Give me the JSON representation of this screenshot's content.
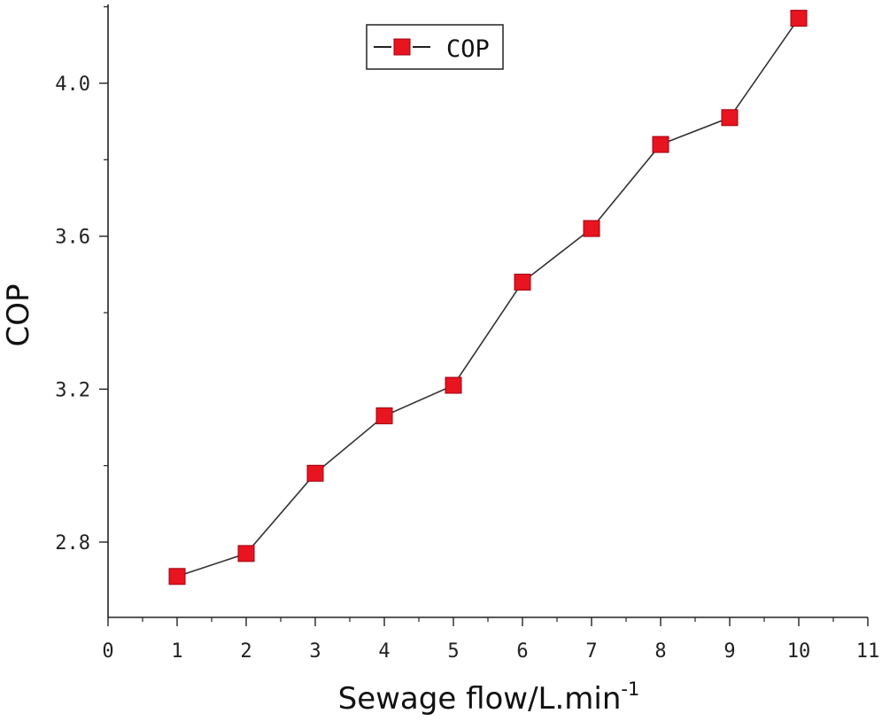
{
  "chart_data": {
    "type": "line",
    "title": "",
    "xlabel": "Sewage flow/L.min",
    "xlabel_superscript": "-1",
    "ylabel": "COP",
    "xlim": [
      0,
      11
    ],
    "ylim": [
      2.6,
      4.2
    ],
    "x_ticks": [
      "0",
      "1",
      "2",
      "3",
      "4",
      "5",
      "6",
      "7",
      "8",
      "9",
      "10",
      "11"
    ],
    "y_ticks": [
      "2.8",
      "3.2",
      "3.6",
      "4.0"
    ],
    "grid": false,
    "legend_position": "top-center",
    "series": [
      {
        "name": "COP",
        "marker": "square",
        "color": "#e8141f",
        "line_color": "#333333",
        "x": [
          1,
          2,
          3,
          4,
          5,
          6,
          7,
          8,
          9,
          10
        ],
        "values": [
          2.71,
          2.77,
          2.98,
          3.13,
          3.21,
          3.48,
          3.62,
          3.84,
          3.91,
          4.17
        ]
      }
    ]
  }
}
